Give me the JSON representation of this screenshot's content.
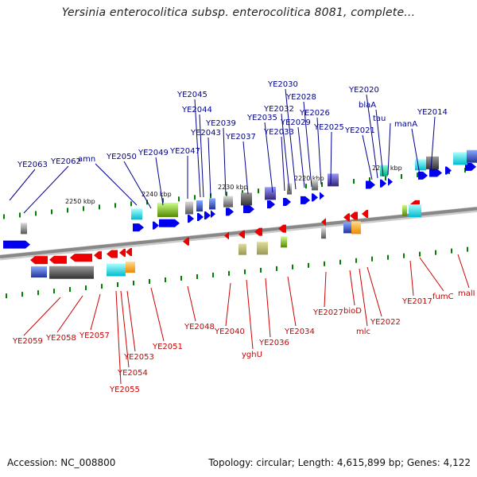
{
  "title": "Yersinia enterocolitica subsp. enterocolitica 8081, complete...",
  "footer": {
    "accession": "Accession: NC_008800",
    "summary": "Topology: circular; Length: 4,615,899 bp; Genes: 4,122"
  },
  "colors": {
    "backbone": "#888888",
    "top_label": "#00008b",
    "bottom_label": "#cc0000",
    "forward": "#0000ee",
    "reverse": "#ee0000",
    "tick": "#008000"
  },
  "scale_labels": [
    "2250 kbp",
    "2240 kbp",
    "2230 kbp",
    "2220 kbp",
    "2210 kbp"
  ],
  "top_labels": [
    "YE2063",
    "YE2062",
    "amn",
    "YE2050",
    "YE2049",
    "YE2047",
    "YE2045",
    "YE2044",
    "YE2043",
    "YE2039",
    "YE2037",
    "YE2035",
    "YE2033",
    "YE2032",
    "YE2030",
    "YE2029",
    "YE2028",
    "YE2026",
    "YE2025",
    "YE2021",
    "YE2020",
    "blaA",
    "tau",
    "manA",
    "YE2014"
  ],
  "bottom_labels": [
    "YE2059",
    "YE2058",
    "YE2057",
    "YE2055",
    "YE2054",
    "YE2053",
    "YE2051",
    "YE2048",
    "YE2040",
    "yghU",
    "YE2036",
    "YE2034",
    "YE2027",
    "bioD",
    "mlc",
    "YE2022",
    "YE2017",
    "fumC",
    "malI"
  ]
}
